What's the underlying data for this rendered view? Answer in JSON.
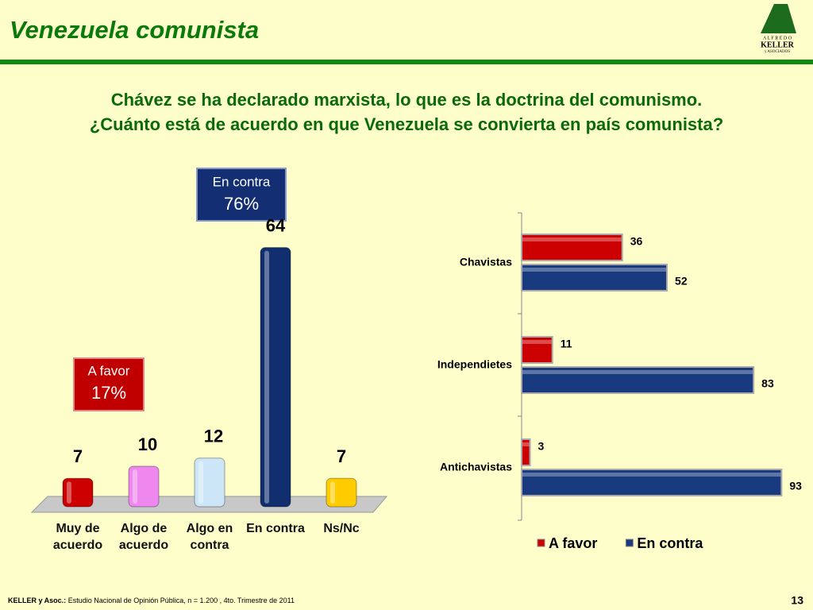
{
  "header": {
    "title": "Venezuela comunista",
    "logo": {
      "top": "A L F R E D O",
      "name": "KELLER",
      "bottom": "y ASOCIADOS"
    }
  },
  "question": [
    "Chávez se ha declarado marxista, lo que es la doctrina del comunismo.",
    "¿Cuánto está de acuerdo en que Venezuela se convierta en país comunista?"
  ],
  "callouts": [
    {
      "label": "En contra",
      "value": "76%"
    },
    {
      "label": "A favor",
      "value": "17%"
    }
  ],
  "chart_data": [
    {
      "type": "bar",
      "categories": [
        "Muy de acuerdo",
        "Algo de acuerdo",
        "Algo en contra",
        "En contra",
        "Ns/Nc"
      ],
      "values": [
        7,
        10,
        12,
        64,
        7
      ],
      "colors": [
        "#cc0000",
        "#ee88ee",
        "#cce6f8",
        "#112e6e",
        "#ffcc00"
      ]
    },
    {
      "type": "hbar",
      "categories": [
        "Chavistas",
        "Independietes",
        "Antichavistas"
      ],
      "series": [
        {
          "name": "A favor",
          "color": "#cc0000",
          "values": [
            36,
            11,
            3
          ]
        },
        {
          "name": "En contra",
          "color": "#1a3a80",
          "values": [
            52,
            83,
            93
          ]
        }
      ],
      "legend": "bottom"
    }
  ],
  "footer": {
    "source_label": "KELLER y Asoc.:",
    "source": "Estudio Nacional de Opinión Pública, n = 1.200 , 4to. Trimestre de 2011",
    "page": "13"
  }
}
